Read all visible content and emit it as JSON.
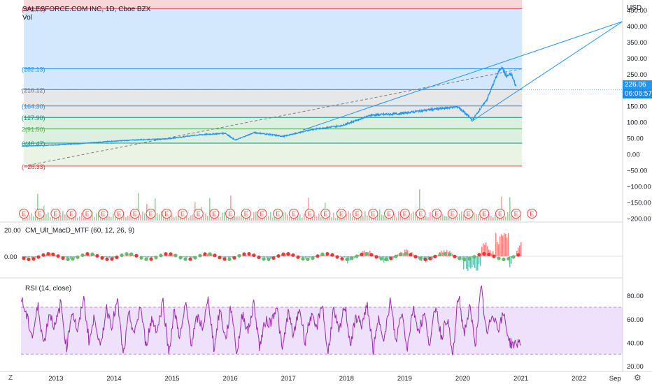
{
  "header": {
    "symbol_title": "SALESFORCE.COM INC, 1D, Cboe BZX",
    "vol_label": "Vol",
    "currency": "USD"
  },
  "price_tags": {
    "last_price": "226.06",
    "countdown": "06:06:57"
  },
  "indicators": {
    "macd_title": "CM_Ult_MacD_MTF (60, 12, 26, 9)",
    "rsi_title": "RSI (14, close)"
  },
  "corner_labels": {
    "left_bottom": "Z",
    "right_bottom": "⚙"
  },
  "colors": {
    "price_line": "#2196f3",
    "trend_line": "#2196f3",
    "rsi_line": "#9c27b0",
    "rsi_band": "#ede1fb",
    "fib_blue": "#cce4fb",
    "fib_gray": "#e3e3e3",
    "fib_green": "#d7ecd9",
    "fib_red": "#f5d2d6",
    "earnings": "#f44336",
    "last_tag": "#2196f3",
    "countdown_tag": "#1e88e5"
  },
  "chart_data": [
    {
      "type": "line",
      "pane": "price",
      "series": [
        {
          "x": [
            "2012-06",
            "2012-12",
            "2013-06",
            "2013-12",
            "2014-06",
            "2014-12",
            "2015-06",
            "2015-12",
            "2016-02",
            "2016-06",
            "2016-12",
            "2017-06",
            "2017-12",
            "2018-06",
            "2018-12",
            "2019-06",
            "2019-12",
            "2020-03",
            "2020-06",
            "2020-08",
            "2020-09",
            "2020-10",
            "2020-11",
            "2020-12"
          ],
          "values": [
            37,
            40,
            45,
            52,
            57,
            60,
            72,
            78,
            56,
            80,
            68,
            90,
            102,
            135,
            140,
            152,
            162,
            120,
            185,
            260,
            290,
            258,
            265,
            226
          ]
        }
      ],
      "y_ticks": [
        "450.00",
        "400.00",
        "350.00",
        "300.00",
        "250.00",
        "200.00",
        "150.00",
        "100.00",
        "50.00",
        "0.00",
        "−50.00",
        "−100.00",
        "−150.00",
        "−200.00"
      ],
      "ylim": [
        -200,
        450
      ],
      "fib_levels": [
        {
          "label": "(472.76)",
          "value": 472.76
        },
        {
          "label": "(282.13)",
          "value": 282.13
        },
        {
          "label": "(216.12)",
          "value": 216.12
        },
        {
          "label": "(164.30)",
          "value": 164.3
        },
        {
          "label": "(127.90)",
          "value": 127.9
        },
        {
          "label": "2(91.50)",
          "value": 91.5
        },
        {
          "label": "6(46.47)",
          "value": 46.47
        },
        {
          "label": "(−26.33)",
          "value": -26.33
        }
      ],
      "x_ticks": [
        "2013",
        "2014",
        "2015",
        "2016",
        "2017",
        "2018",
        "2019",
        "2020",
        "2021",
        "2022",
        "Sep"
      ],
      "earnings_marker": "E",
      "earnings_count": 33
    },
    {
      "type": "bar",
      "pane": "macd",
      "y_ticks": [
        "20.00",
        "0.00"
      ],
      "ylim": [
        -10,
        25
      ]
    },
    {
      "type": "line",
      "pane": "rsi",
      "y_ticks": [
        "80.00",
        "60.00",
        "40.00",
        "20.00"
      ],
      "ylim": [
        20,
        90
      ],
      "band": [
        30,
        70
      ],
      "values": [
        78,
        62,
        45,
        71,
        38,
        66,
        52,
        74,
        35,
        68,
        48,
        79,
        40,
        63,
        33,
        70,
        55,
        75,
        28,
        64,
        46,
        72,
        37,
        60,
        50,
        76,
        31,
        67,
        44,
        73,
        39,
        61,
        53,
        77,
        34,
        69,
        42,
        71,
        30,
        65,
        49,
        74,
        36,
        58,
        57,
        72,
        32,
        66,
        45,
        70,
        41,
        63,
        51,
        75,
        29,
        68,
        47,
        73,
        38,
        62,
        55,
        71,
        33,
        60,
        43,
        76,
        40,
        67,
        35,
        70,
        50,
        64,
        37,
        73,
        44,
        62,
        27,
        81,
        48,
        69,
        39,
        87,
        45,
        66,
        52,
        64,
        40,
        38,
        42
      ]
    }
  ]
}
